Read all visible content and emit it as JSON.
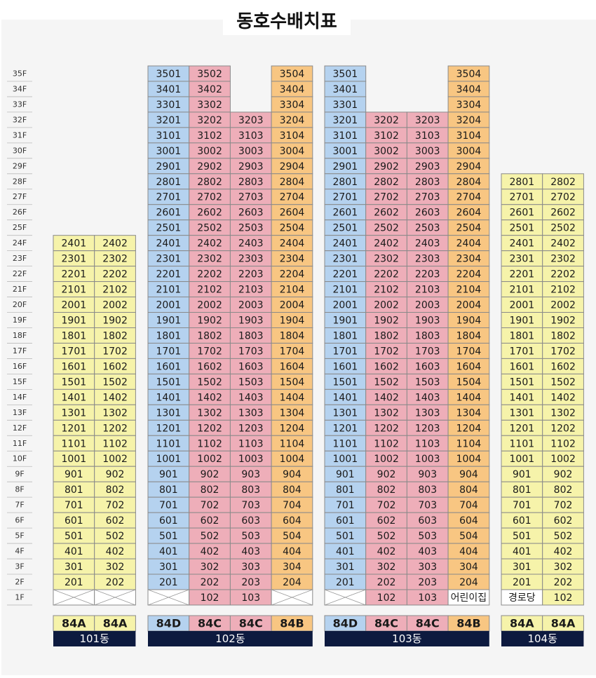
{
  "title": "동호수배치표",
  "floors": [
    "35F",
    "34F",
    "33F",
    "32F",
    "31F",
    "30F",
    "29F",
    "28F",
    "27F",
    "26F",
    "25F",
    "24F",
    "23F",
    "22F",
    "21F",
    "20F",
    "19F",
    "18F",
    "17F",
    "16F",
    "15F",
    "14F",
    "13F",
    "12F",
    "11F",
    "10F",
    "9F",
    "8F",
    "7F",
    "6F",
    "5F",
    "4F",
    "3F",
    "2F",
    "1F"
  ],
  "buildings": [
    {
      "name": "101동",
      "types": [
        "84A",
        "84A"
      ],
      "colors": [
        "#f6f3aa",
        "#f6f3aa"
      ],
      "rows": [
        [
          "2401",
          "2402"
        ],
        [
          "2301",
          "2302"
        ],
        [
          "2201",
          "2202"
        ],
        [
          "2101",
          "2102"
        ],
        [
          "2001",
          "2002"
        ],
        [
          "1901",
          "1902"
        ],
        [
          "1801",
          "1802"
        ],
        [
          "1701",
          "1702"
        ],
        [
          "1601",
          "1602"
        ],
        [
          "1501",
          "1502"
        ],
        [
          "1401",
          "1402"
        ],
        [
          "1301",
          "1302"
        ],
        [
          "1201",
          "1202"
        ],
        [
          "1101",
          "1102"
        ],
        [
          "1001",
          "1002"
        ],
        [
          "901",
          "902"
        ],
        [
          "801",
          "802"
        ],
        [
          "701",
          "702"
        ],
        [
          "601",
          "602"
        ],
        [
          "501",
          "502"
        ],
        [
          "401",
          "402"
        ],
        [
          "301",
          "302"
        ],
        [
          "201",
          "202"
        ],
        [
          null,
          null
        ]
      ]
    },
    {
      "name": "102동",
      "types": [
        "84D",
        "84C",
        "84C",
        "84B"
      ],
      "colors": [
        "#b5d2ef",
        "#eeaeb9",
        "#eeaeb9",
        "#f8c682"
      ],
      "rows": [
        [
          "3501",
          "3502",
          null,
          "3504"
        ],
        [
          "3401",
          "3402",
          null,
          "3404"
        ],
        [
          "3301",
          "3302",
          null,
          "3304"
        ],
        [
          "3201",
          "3202",
          "3203",
          "3204"
        ],
        [
          "3101",
          "3102",
          "3103",
          "3104"
        ],
        [
          "3001",
          "3002",
          "3003",
          "3004"
        ],
        [
          "2901",
          "2902",
          "2903",
          "2904"
        ],
        [
          "2801",
          "2802",
          "2803",
          "2804"
        ],
        [
          "2701",
          "2702",
          "2703",
          "2704"
        ],
        [
          "2601",
          "2602",
          "2603",
          "2604"
        ],
        [
          "2501",
          "2502",
          "2503",
          "2504"
        ],
        [
          "2401",
          "2402",
          "2403",
          "2404"
        ],
        [
          "2301",
          "2302",
          "2303",
          "2304"
        ],
        [
          "2201",
          "2202",
          "2203",
          "2204"
        ],
        [
          "2101",
          "2102",
          "2103",
          "2104"
        ],
        [
          "2001",
          "2002",
          "2003",
          "2004"
        ],
        [
          "1901",
          "1902",
          "1903",
          "1904"
        ],
        [
          "1801",
          "1802",
          "1803",
          "1804"
        ],
        [
          "1701",
          "1702",
          "1703",
          "1704"
        ],
        [
          "1601",
          "1602",
          "1603",
          "1604"
        ],
        [
          "1501",
          "1502",
          "1503",
          "1504"
        ],
        [
          "1401",
          "1402",
          "1403",
          "1404"
        ],
        [
          "1301",
          "1302",
          "1303",
          "1304"
        ],
        [
          "1201",
          "1202",
          "1203",
          "1204"
        ],
        [
          "1101",
          "1102",
          "1103",
          "1104"
        ],
        [
          "1001",
          "1002",
          "1003",
          "1004"
        ],
        [
          "901",
          "902",
          "903",
          "904"
        ],
        [
          "801",
          "802",
          "803",
          "804"
        ],
        [
          "701",
          "702",
          "703",
          "704"
        ],
        [
          "601",
          "602",
          "603",
          "604"
        ],
        [
          "501",
          "502",
          "503",
          "504"
        ],
        [
          "401",
          "402",
          "403",
          "404"
        ],
        [
          "301",
          "302",
          "303",
          "304"
        ],
        [
          "201",
          "202",
          "203",
          "204"
        ],
        [
          null,
          "102",
          "103",
          null
        ]
      ]
    },
    {
      "name": "103동",
      "types": [
        "84D",
        "84C",
        "84C",
        "84B"
      ],
      "colors": [
        "#b5d2ef",
        "#eeaeb9",
        "#eeaeb9",
        "#f8c682"
      ],
      "rows": [
        [
          "3501",
          null,
          null,
          "3504"
        ],
        [
          "3401",
          null,
          null,
          "3404"
        ],
        [
          "3301",
          null,
          null,
          "3304"
        ],
        [
          "3201",
          "3202",
          "3203",
          "3204"
        ],
        [
          "3101",
          "3102",
          "3103",
          "3104"
        ],
        [
          "3001",
          "3002",
          "3003",
          "3004"
        ],
        [
          "2901",
          "2902",
          "2903",
          "2904"
        ],
        [
          "2801",
          "2802",
          "2803",
          "2804"
        ],
        [
          "2701",
          "2702",
          "2703",
          "2704"
        ],
        [
          "2601",
          "2602",
          "2603",
          "2604"
        ],
        [
          "2501",
          "2502",
          "2503",
          "2504"
        ],
        [
          "2401",
          "2402",
          "2403",
          "2404"
        ],
        [
          "2301",
          "2302",
          "2303",
          "2304"
        ],
        [
          "2201",
          "2202",
          "2203",
          "2204"
        ],
        [
          "2101",
          "2102",
          "2103",
          "2104"
        ],
        [
          "2001",
          "2002",
          "2003",
          "2004"
        ],
        [
          "1901",
          "1902",
          "1903",
          "1904"
        ],
        [
          "1801",
          "1802",
          "1803",
          "1804"
        ],
        [
          "1701",
          "1702",
          "1703",
          "1704"
        ],
        [
          "1601",
          "1602",
          "1603",
          "1604"
        ],
        [
          "1501",
          "1502",
          "1503",
          "1504"
        ],
        [
          "1401",
          "1402",
          "1403",
          "1404"
        ],
        [
          "1301",
          "1302",
          "1303",
          "1304"
        ],
        [
          "1201",
          "1202",
          "1203",
          "1204"
        ],
        [
          "1101",
          "1102",
          "1103",
          "1104"
        ],
        [
          "1001",
          "1002",
          "1003",
          "1004"
        ],
        [
          "901",
          "902",
          "903",
          "904"
        ],
        [
          "801",
          "802",
          "803",
          "804"
        ],
        [
          "701",
          "702",
          "703",
          "704"
        ],
        [
          "601",
          "602",
          "603",
          "604"
        ],
        [
          "501",
          "502",
          "503",
          "504"
        ],
        [
          "401",
          "402",
          "403",
          "404"
        ],
        [
          "301",
          "302",
          "303",
          "304"
        ],
        [
          "201",
          "202",
          "203",
          "204"
        ],
        [
          null,
          "102",
          "103",
          "어린이집"
        ]
      ]
    },
    {
      "name": "104동",
      "types": [
        "84A",
        "84A"
      ],
      "colors": [
        "#f6f3aa",
        "#f6f3aa"
      ],
      "rows": [
        [
          "2801",
          "2802"
        ],
        [
          "2701",
          "2702"
        ],
        [
          "2601",
          "2602"
        ],
        [
          "2501",
          "2502"
        ],
        [
          "2401",
          "2402"
        ],
        [
          "2301",
          "2302"
        ],
        [
          "2201",
          "2202"
        ],
        [
          "2101",
          "2102"
        ],
        [
          "2001",
          "2002"
        ],
        [
          "1901",
          "1902"
        ],
        [
          "1801",
          "1802"
        ],
        [
          "1701",
          "1702"
        ],
        [
          "1601",
          "1602"
        ],
        [
          "1501",
          "1502"
        ],
        [
          "1401",
          "1402"
        ],
        [
          "1301",
          "1302"
        ],
        [
          "1201",
          "1202"
        ],
        [
          "1101",
          "1102"
        ],
        [
          "1001",
          "1002"
        ],
        [
          "901",
          "902"
        ],
        [
          "801",
          "802"
        ],
        [
          "701",
          "702"
        ],
        [
          "601",
          "602"
        ],
        [
          "501",
          "502"
        ],
        [
          "401",
          "402"
        ],
        [
          "301",
          "302"
        ],
        [
          "201",
          "202"
        ],
        [
          "경로당",
          "102"
        ]
      ]
    }
  ]
}
